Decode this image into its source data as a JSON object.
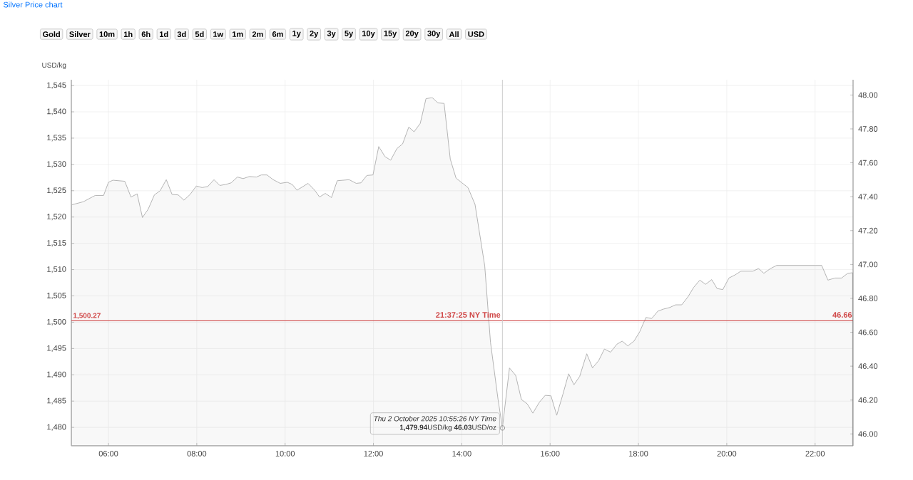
{
  "chart_data": {
    "type": "area",
    "title": "Silver Price chart",
    "ylabel": "USD/kg",
    "xlim": [
      5.16,
      22.86
    ],
    "ylim": [
      1476.5,
      1546.1
    ],
    "y2lim": [
      45.93,
      48.09
    ],
    "xticks": [
      {
        "value": 6,
        "label": "06:00"
      },
      {
        "value": 8,
        "label": "08:00"
      },
      {
        "value": 10,
        "label": "10:00"
      },
      {
        "value": 12,
        "label": "12:00"
      },
      {
        "value": 14,
        "label": "14:00"
      },
      {
        "value": 16,
        "label": "16:00"
      },
      {
        "value": 18,
        "label": "18:00"
      },
      {
        "value": 20,
        "label": "20:00"
      },
      {
        "value": 22,
        "label": "22:00"
      }
    ],
    "yticks": [
      {
        "value": 1480,
        "label": "1,480"
      },
      {
        "value": 1485,
        "label": "1,485"
      },
      {
        "value": 1490,
        "label": "1,490"
      },
      {
        "value": 1495,
        "label": "1,495"
      },
      {
        "value": 1500,
        "label": "1,500"
      },
      {
        "value": 1505,
        "label": "1,505"
      },
      {
        "value": 1510,
        "label": "1,510"
      },
      {
        "value": 1515,
        "label": "1,515"
      },
      {
        "value": 1520,
        "label": "1,520"
      },
      {
        "value": 1525,
        "label": "1,525"
      },
      {
        "value": 1530,
        "label": "1,530"
      },
      {
        "value": 1535,
        "label": "1,535"
      },
      {
        "value": 1540,
        "label": "1,540"
      },
      {
        "value": 1545,
        "label": "1,545"
      }
    ],
    "y2ticks": [
      {
        "value": 46.0,
        "label": "46.00"
      },
      {
        "value": 46.2,
        "label": "46.20"
      },
      {
        "value": 46.4,
        "label": "46.40"
      },
      {
        "value": 46.6,
        "label": "46.60"
      },
      {
        "value": 46.8,
        "label": "46.80"
      },
      {
        "value": 47.0,
        "label": "47.00"
      },
      {
        "value": 47.2,
        "label": "47.20"
      },
      {
        "value": 47.4,
        "label": "47.40"
      },
      {
        "value": 47.6,
        "label": "47.60"
      },
      {
        "value": 47.8,
        "label": "47.80"
      },
      {
        "value": 48.0,
        "label": "48.00"
      }
    ],
    "grid": true,
    "series": [
      {
        "color": "#b4b4b4",
        "x": [
          5.16,
          5.43,
          5.7,
          5.89,
          6.0,
          6.1,
          6.37,
          6.51,
          6.65,
          6.77,
          6.9,
          7.04,
          7.17,
          7.31,
          7.44,
          7.58,
          7.71,
          7.85,
          7.99,
          8.12,
          8.25,
          8.39,
          8.52,
          8.66,
          8.78,
          8.92,
          9.05,
          9.19,
          9.35,
          9.46,
          9.59,
          9.73,
          9.89,
          10.05,
          10.16,
          10.27,
          10.52,
          10.67,
          10.78,
          10.91,
          11.05,
          11.18,
          11.45,
          11.61,
          11.72,
          11.85,
          11.99,
          12.12,
          12.26,
          12.39,
          12.53,
          12.66,
          12.8,
          12.92,
          13.06,
          13.19,
          13.33,
          13.46,
          13.6,
          13.74,
          13.87,
          14.14,
          14.3,
          14.52,
          14.65,
          14.82,
          14.92,
          15.08,
          15.22,
          15.35,
          15.48,
          15.61,
          15.75,
          15.89,
          16.02,
          16.15,
          16.29,
          16.42,
          16.54,
          16.67,
          16.83,
          16.96,
          17.1,
          17.23,
          17.37,
          17.51,
          17.63,
          17.76,
          17.9,
          18.03,
          18.17,
          18.3,
          18.44,
          18.57,
          18.71,
          18.84,
          18.98,
          19.12,
          19.25,
          19.39,
          19.52,
          19.66,
          19.78,
          19.91,
          20.05,
          20.19,
          20.32,
          20.59,
          20.72,
          20.84,
          20.99,
          21.13,
          21.4,
          22.15,
          22.29,
          22.45,
          22.6,
          22.74,
          22.85
        ],
        "values": [
          1522.3,
          1522.9,
          1524.1,
          1524.1,
          1526.6,
          1527.0,
          1526.8,
          1523.8,
          1524.4,
          1519.9,
          1521.5,
          1524.2,
          1525.0,
          1527.1,
          1524.3,
          1524.2,
          1523.2,
          1524.3,
          1525.9,
          1525.6,
          1525.8,
          1527.1,
          1526.0,
          1526.2,
          1526.5,
          1527.6,
          1527.3,
          1527.7,
          1527.6,
          1528.0,
          1528.0,
          1527.1,
          1526.4,
          1526.6,
          1526.2,
          1525.1,
          1526.4,
          1525.1,
          1523.8,
          1524.5,
          1523.7,
          1526.9,
          1527.1,
          1526.4,
          1526.5,
          1527.9,
          1528.0,
          1533.4,
          1531.5,
          1530.8,
          1533.0,
          1533.9,
          1537.1,
          1536.2,
          1537.8,
          1542.5,
          1542.7,
          1541.7,
          1541.6,
          1531.0,
          1527.4,
          1525.6,
          1522.4,
          1510.7,
          1496.2,
          1485.4,
          1479.9,
          1491.3,
          1489.9,
          1485.3,
          1484.5,
          1482.7,
          1484.7,
          1486.1,
          1486.0,
          1482.3,
          1486.3,
          1490.2,
          1488.1,
          1489.7,
          1494.0,
          1491.3,
          1492.7,
          1494.9,
          1494.3,
          1495.8,
          1496.4,
          1495.5,
          1496.4,
          1498.2,
          1500.9,
          1500.7,
          1502.1,
          1502.5,
          1502.8,
          1503.3,
          1503.3,
          1504.8,
          1506.6,
          1508.0,
          1507.2,
          1508.1,
          1506.4,
          1506.2,
          1508.4,
          1509.0,
          1509.7,
          1509.7,
          1510.2,
          1509.3,
          1510.2,
          1510.8,
          1510.8,
          1510.8,
          1508.0,
          1508.4,
          1508.4,
          1509.3,
          1509.4
        ]
      }
    ],
    "ref_lines": [
      {
        "axis": "y",
        "value": 1500.27,
        "label": "1,500.27",
        "color": "#d04848"
      },
      {
        "axis": "x",
        "value": 14.92,
        "color": "#cccccc"
      }
    ],
    "annotations": [
      "Gold",
      "Silver",
      "10m",
      "1h",
      "6h",
      "1d",
      "3d",
      "5d",
      "1w",
      "1m",
      "2m",
      "6m",
      "1y",
      "2y",
      "3y",
      "5y",
      "10y",
      "15y",
      "20y",
      "30y",
      "All",
      "USD",
      {
        "text": "21:37:25 NY Time",
        "x": 14.9,
        "y": 1500.27
      },
      {
        "text": "46.66",
        "x": 22.86,
        "y": 1500.27
      },
      {
        "text": "Thu 2 October 2025 10:55:26 NY Time",
        "x": 14.92,
        "y": 1479.9
      },
      {
        "text": "**1,479.94**USD/kg **46.03**USD/oz",
        "x": 14.92,
        "y": 1479.9
      }
    ]
  }
}
